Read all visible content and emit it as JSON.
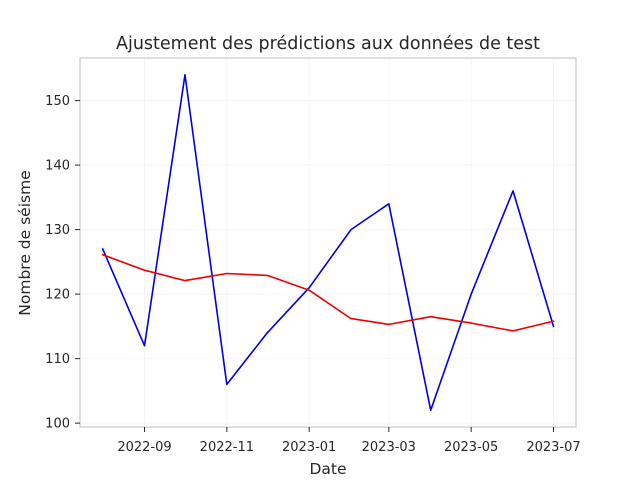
{
  "chart_data": {
    "type": "line",
    "title": "Ajustement des prédictions aux données de test",
    "xlabel": "Date",
    "ylabel": "Nombre de séisme",
    "x": [
      "2022-08",
      "2022-09",
      "2022-10",
      "2022-11",
      "2022-12",
      "2023-01",
      "2023-02",
      "2023-03",
      "2023-04",
      "2023-05",
      "2023-06",
      "2023-07"
    ],
    "xticks": [
      "2022-09",
      "2022-11",
      "2023-01",
      "2023-03",
      "2023-05",
      "2023-07"
    ],
    "yticks": [
      100,
      110,
      120,
      130,
      140,
      150
    ],
    "ylim": [
      99.4,
      156.6
    ],
    "grid": true,
    "series": [
      {
        "color": "#0000dd",
        "values": [
          127,
          112,
          154,
          106,
          114,
          121,
          130,
          134,
          102,
          120,
          136,
          115
        ]
      },
      {
        "color": "#ee0000",
        "values": [
          126.1,
          123.7,
          122.1,
          123.2,
          122.9,
          120.6,
          116.2,
          115.3,
          116.5,
          115.5,
          114.3,
          115.8
        ]
      }
    ]
  }
}
